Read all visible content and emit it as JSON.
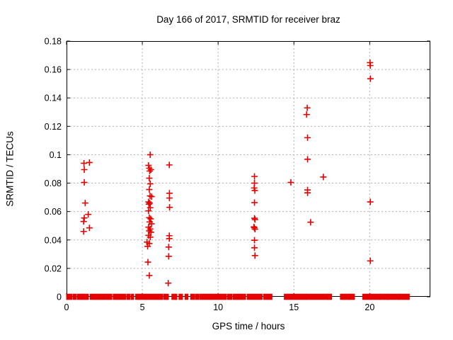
{
  "chart_data": {
    "type": "scatter",
    "title": "Day 166 of 2017, SRMTID for receiver braz",
    "xlabel": "GPS time / hours",
    "ylabel": "SRMTID / TECUs",
    "xlim": [
      0,
      24
    ],
    "ylim": [
      0,
      0.18
    ],
    "x_ticks": [
      0,
      5,
      10,
      15,
      20
    ],
    "x_tick_labels": [
      "0",
      "5",
      "10",
      "15",
      "20"
    ],
    "y_ticks": [
      0,
      0.02,
      0.04,
      0.06,
      0.08,
      0.1,
      0.12,
      0.14,
      0.16,
      0.18
    ],
    "y_tick_labels": [
      "0",
      "0.02",
      "0.04",
      "0.06",
      "0.08",
      "0.1",
      "0.12",
      "0.14",
      "0.16",
      "0.18"
    ],
    "grid": true,
    "legend": "none",
    "marker": "plus",
    "marker_color": "#e60000",
    "grid_color": "#b0b0b0",
    "axis_color": "#000000",
    "points": [
      [
        1.15,
        0.094
      ],
      [
        1.51,
        0.0945
      ],
      [
        1.17,
        0.0895
      ],
      [
        1.17,
        0.0805
      ],
      [
        1.23,
        0.066
      ],
      [
        1.43,
        0.058
      ],
      [
        1.17,
        0.0555
      ],
      [
        1.13,
        0.053
      ],
      [
        1.51,
        0.0485
      ],
      [
        1.13,
        0.046
      ],
      [
        5.52,
        0.1
      ],
      [
        5.41,
        0.0925
      ],
      [
        5.46,
        0.0905
      ],
      [
        5.57,
        0.0895
      ],
      [
        5.49,
        0.0885
      ],
      [
        5.46,
        0.0835
      ],
      [
        5.52,
        0.0795
      ],
      [
        5.46,
        0.0755
      ],
      [
        5.51,
        0.071
      ],
      [
        5.61,
        0.0705
      ],
      [
        5.41,
        0.0668
      ],
      [
        5.49,
        0.066
      ],
      [
        5.43,
        0.0652
      ],
      [
        5.52,
        0.0627
      ],
      [
        5.41,
        0.0605
      ],
      [
        5.46,
        0.0557
      ],
      [
        5.55,
        0.0549
      ],
      [
        5.49,
        0.0527
      ],
      [
        5.61,
        0.0514
      ],
      [
        5.41,
        0.049
      ],
      [
        5.52,
        0.0477
      ],
      [
        5.46,
        0.0464
      ],
      [
        5.57,
        0.0454
      ],
      [
        5.41,
        0.0432
      ],
      [
        5.52,
        0.042
      ],
      [
        5.31,
        0.0385
      ],
      [
        5.46,
        0.0375
      ],
      [
        5.35,
        0.0355
      ],
      [
        5.37,
        0.0244
      ],
      [
        5.46,
        0.015
      ],
      [
        6.78,
        0.0928
      ],
      [
        6.79,
        0.0729
      ],
      [
        6.79,
        0.0695
      ],
      [
        6.8,
        0.063
      ],
      [
        6.78,
        0.043
      ],
      [
        6.78,
        0.041
      ],
      [
        6.74,
        0.035
      ],
      [
        6.74,
        0.0285
      ],
      [
        6.71,
        0.0096
      ],
      [
        12.4,
        0.0847
      ],
      [
        12.4,
        0.08
      ],
      [
        12.38,
        0.0766
      ],
      [
        12.42,
        0.0748
      ],
      [
        12.4,
        0.0663
      ],
      [
        12.4,
        0.0553
      ],
      [
        12.43,
        0.0544
      ],
      [
        12.36,
        0.0492
      ],
      [
        12.39,
        0.0486
      ],
      [
        12.43,
        0.0476
      ],
      [
        12.4,
        0.0398
      ],
      [
        12.4,
        0.0345
      ],
      [
        12.43,
        0.029
      ],
      [
        14.8,
        0.0805
      ],
      [
        15.88,
        0.133
      ],
      [
        15.84,
        0.1283
      ],
      [
        15.9,
        0.112
      ],
      [
        15.9,
        0.0968
      ],
      [
        15.9,
        0.0752
      ],
      [
        15.9,
        0.0732
      ],
      [
        16.1,
        0.0525
      ],
      [
        16.94,
        0.0843
      ],
      [
        20.02,
        0.1648
      ],
      [
        20.04,
        0.1628
      ],
      [
        20.05,
        0.1535
      ],
      [
        20.04,
        0.0668
      ],
      [
        20.04,
        0.0253
      ]
    ],
    "zero_line_segments": [
      [
        0.05,
        0.31
      ],
      [
        0.47,
        0.59
      ],
      [
        0.75,
        0.93
      ],
      [
        1.02,
        1.4
      ],
      [
        1.6,
        2.11
      ],
      [
        2.22,
        2.95
      ],
      [
        3.12,
        3.36
      ],
      [
        3.48,
        3.85
      ],
      [
        4.01,
        4.13
      ],
      [
        4.29,
        4.39
      ],
      [
        4.6,
        4.71
      ],
      [
        4.81,
        5.19
      ],
      [
        5.28,
        5.95
      ],
      [
        6.06,
        6.3
      ],
      [
        6.46,
        6.68
      ],
      [
        6.99,
        7.24
      ],
      [
        7.46,
        7.61
      ],
      [
        7.86,
        7.97
      ],
      [
        8.23,
        8.39
      ],
      [
        8.54,
        8.7
      ],
      [
        8.85,
        9.47
      ],
      [
        9.57,
        10.22
      ],
      [
        10.35,
        10.5
      ],
      [
        10.66,
        10.87
      ],
      [
        11.03,
        11.77
      ],
      [
        11.96,
        12.86
      ],
      [
        13.05,
        13.27
      ],
      [
        13.39,
        13.51
      ],
      [
        14.41,
        15.5
      ],
      [
        15.61,
        15.75
      ],
      [
        15.84,
        17.21
      ],
      [
        17.3,
        17.44
      ],
      [
        18.11,
        18.25
      ],
      [
        18.35,
        18.61
      ],
      [
        18.69,
        18.95
      ],
      [
        19.58,
        20.05
      ],
      [
        20.1,
        20.63
      ],
      [
        20.71,
        21.15
      ],
      [
        21.2,
        21.87
      ],
      [
        21.95,
        22.57
      ]
    ]
  }
}
